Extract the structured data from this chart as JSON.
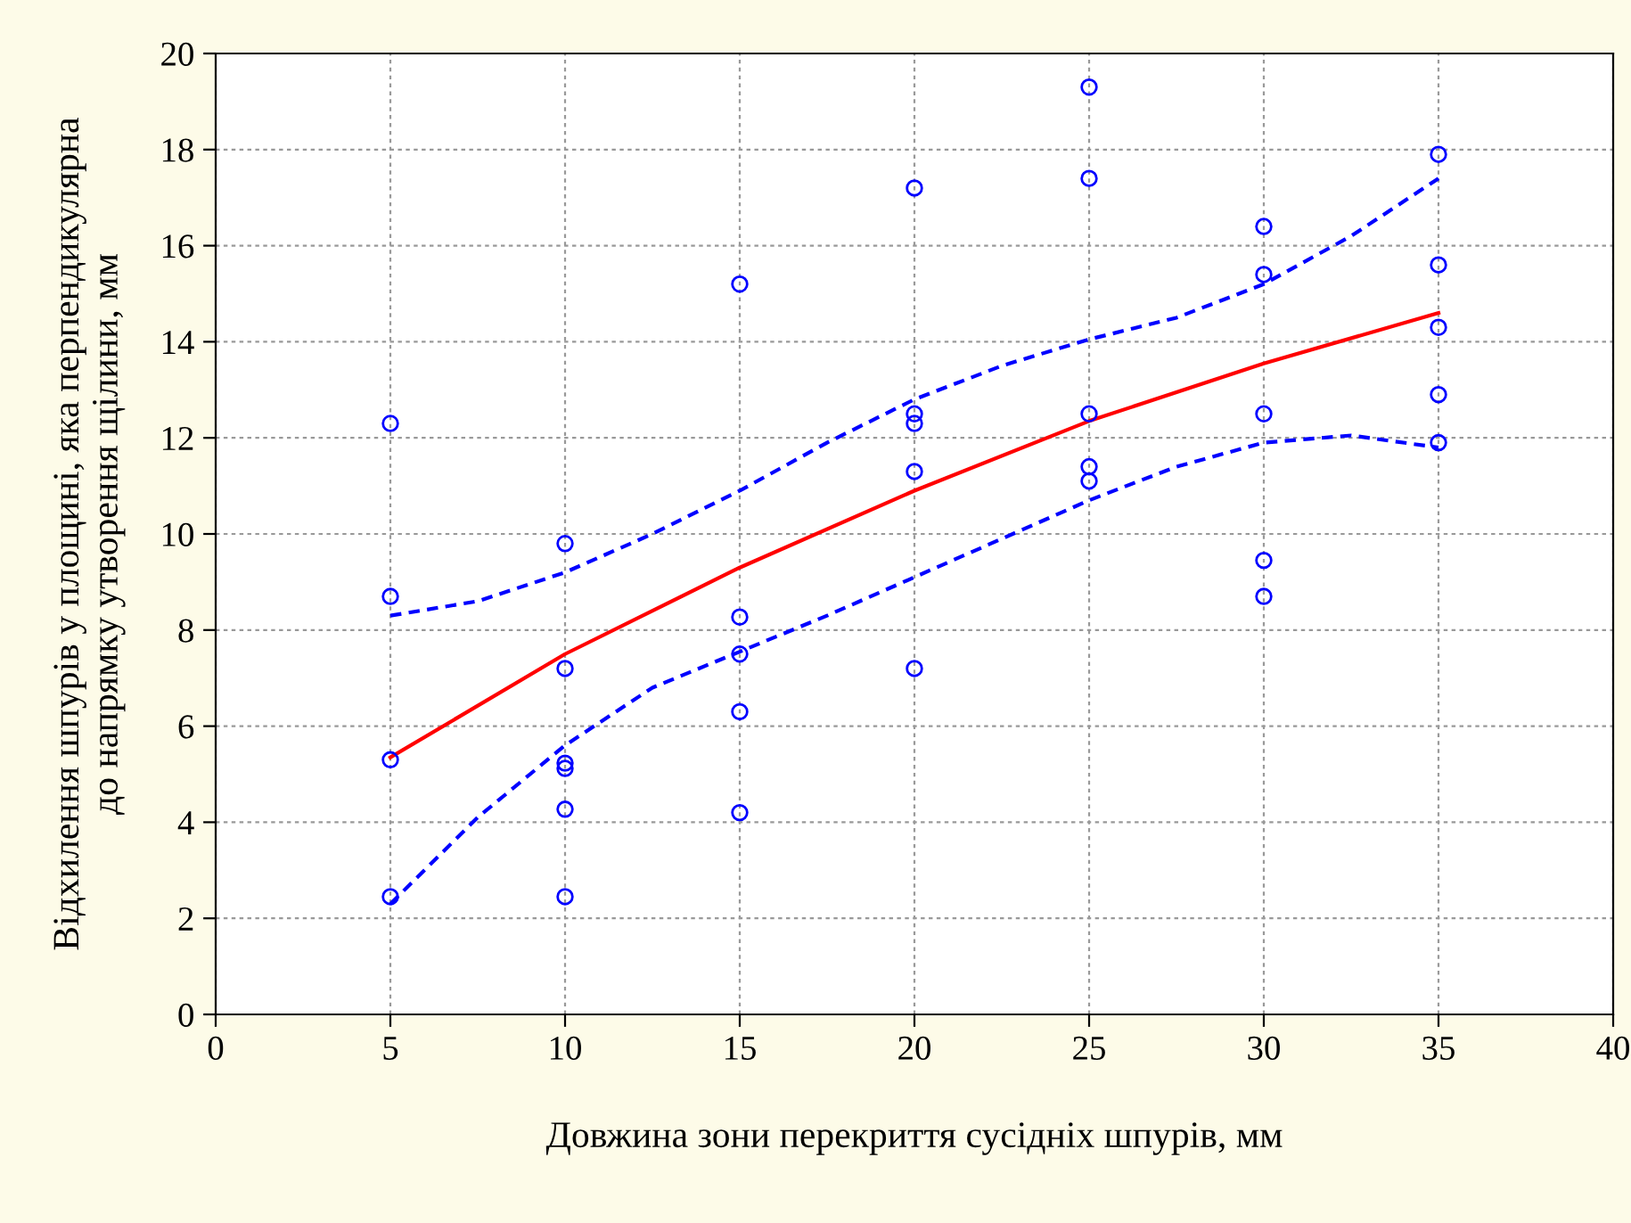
{
  "chart_data": {
    "type": "scatter",
    "xlabel": "Довжина зони перекриття сусідніх шпурів, мм",
    "ylabel": "Відхилення шпурів у площині, яка перпендикулярна\nдо напрямку утворення щілини, мм",
    "xlim": [
      0,
      40
    ],
    "xticks": [
      0,
      5,
      10,
      15,
      20,
      25,
      30,
      35,
      40
    ],
    "ylim": [
      0,
      20
    ],
    "yticks": [
      0,
      2,
      4,
      6,
      8,
      10,
      12,
      14,
      16,
      18,
      20
    ],
    "grid": true,
    "legend": false,
    "series": [
      {
        "color": "#0000ff",
        "marker": "circle",
        "x": [
          5,
          5,
          5,
          5,
          10,
          10,
          10,
          10,
          10,
          10,
          15,
          15,
          15,
          15,
          15,
          20,
          20,
          20,
          20,
          20,
          25,
          25,
          25,
          25,
          25,
          30,
          30,
          30,
          30,
          30,
          35,
          35,
          35,
          35,
          35
        ],
        "values": [
          12.3,
          8.7,
          5.3,
          2.45,
          9.8,
          7.2,
          5.23,
          5.12,
          4.27,
          2.45,
          15.2,
          8.27,
          7.5,
          6.3,
          4.2,
          17.2,
          12.5,
          12.3,
          11.3,
          7.2,
          19.3,
          17.4,
          12.5,
          11.4,
          11.1,
          16.4,
          15.4,
          12.5,
          9.45,
          8.7,
          17.9,
          15.6,
          14.3,
          12.9,
          11.9
        ]
      },
      {
        "type": "line",
        "color": "#ff0000",
        "marker": "none",
        "line_style": "solid",
        "x": [
          5,
          10,
          15,
          20,
          25,
          30,
          35
        ],
        "values": [
          5.35,
          7.5,
          9.3,
          10.9,
          12.35,
          13.55,
          14.6
        ]
      },
      {
        "type": "line",
        "color": "#0000ff",
        "marker": "none",
        "line_style": "dashed",
        "x": [
          5,
          7.5,
          10,
          12.5,
          15,
          17.5,
          20,
          22.5,
          25,
          27.5,
          30,
          32.5,
          35
        ],
        "values": [
          8.3,
          8.6,
          9.2,
          10.0,
          10.9,
          11.9,
          12.8,
          13.5,
          14.05,
          14.5,
          15.2,
          16.2,
          17.4
        ]
      },
      {
        "type": "line",
        "color": "#0000ff",
        "marker": "none",
        "line_style": "dashed",
        "x": [
          5,
          7.5,
          10,
          12.5,
          15,
          17.5,
          20,
          22.5,
          25,
          27.5,
          30,
          32.5,
          35
        ],
        "values": [
          2.3,
          4.1,
          5.6,
          6.8,
          7.55,
          8.3,
          9.1,
          9.9,
          10.7,
          11.4,
          11.9,
          12.05,
          11.8
        ]
      }
    ]
  }
}
